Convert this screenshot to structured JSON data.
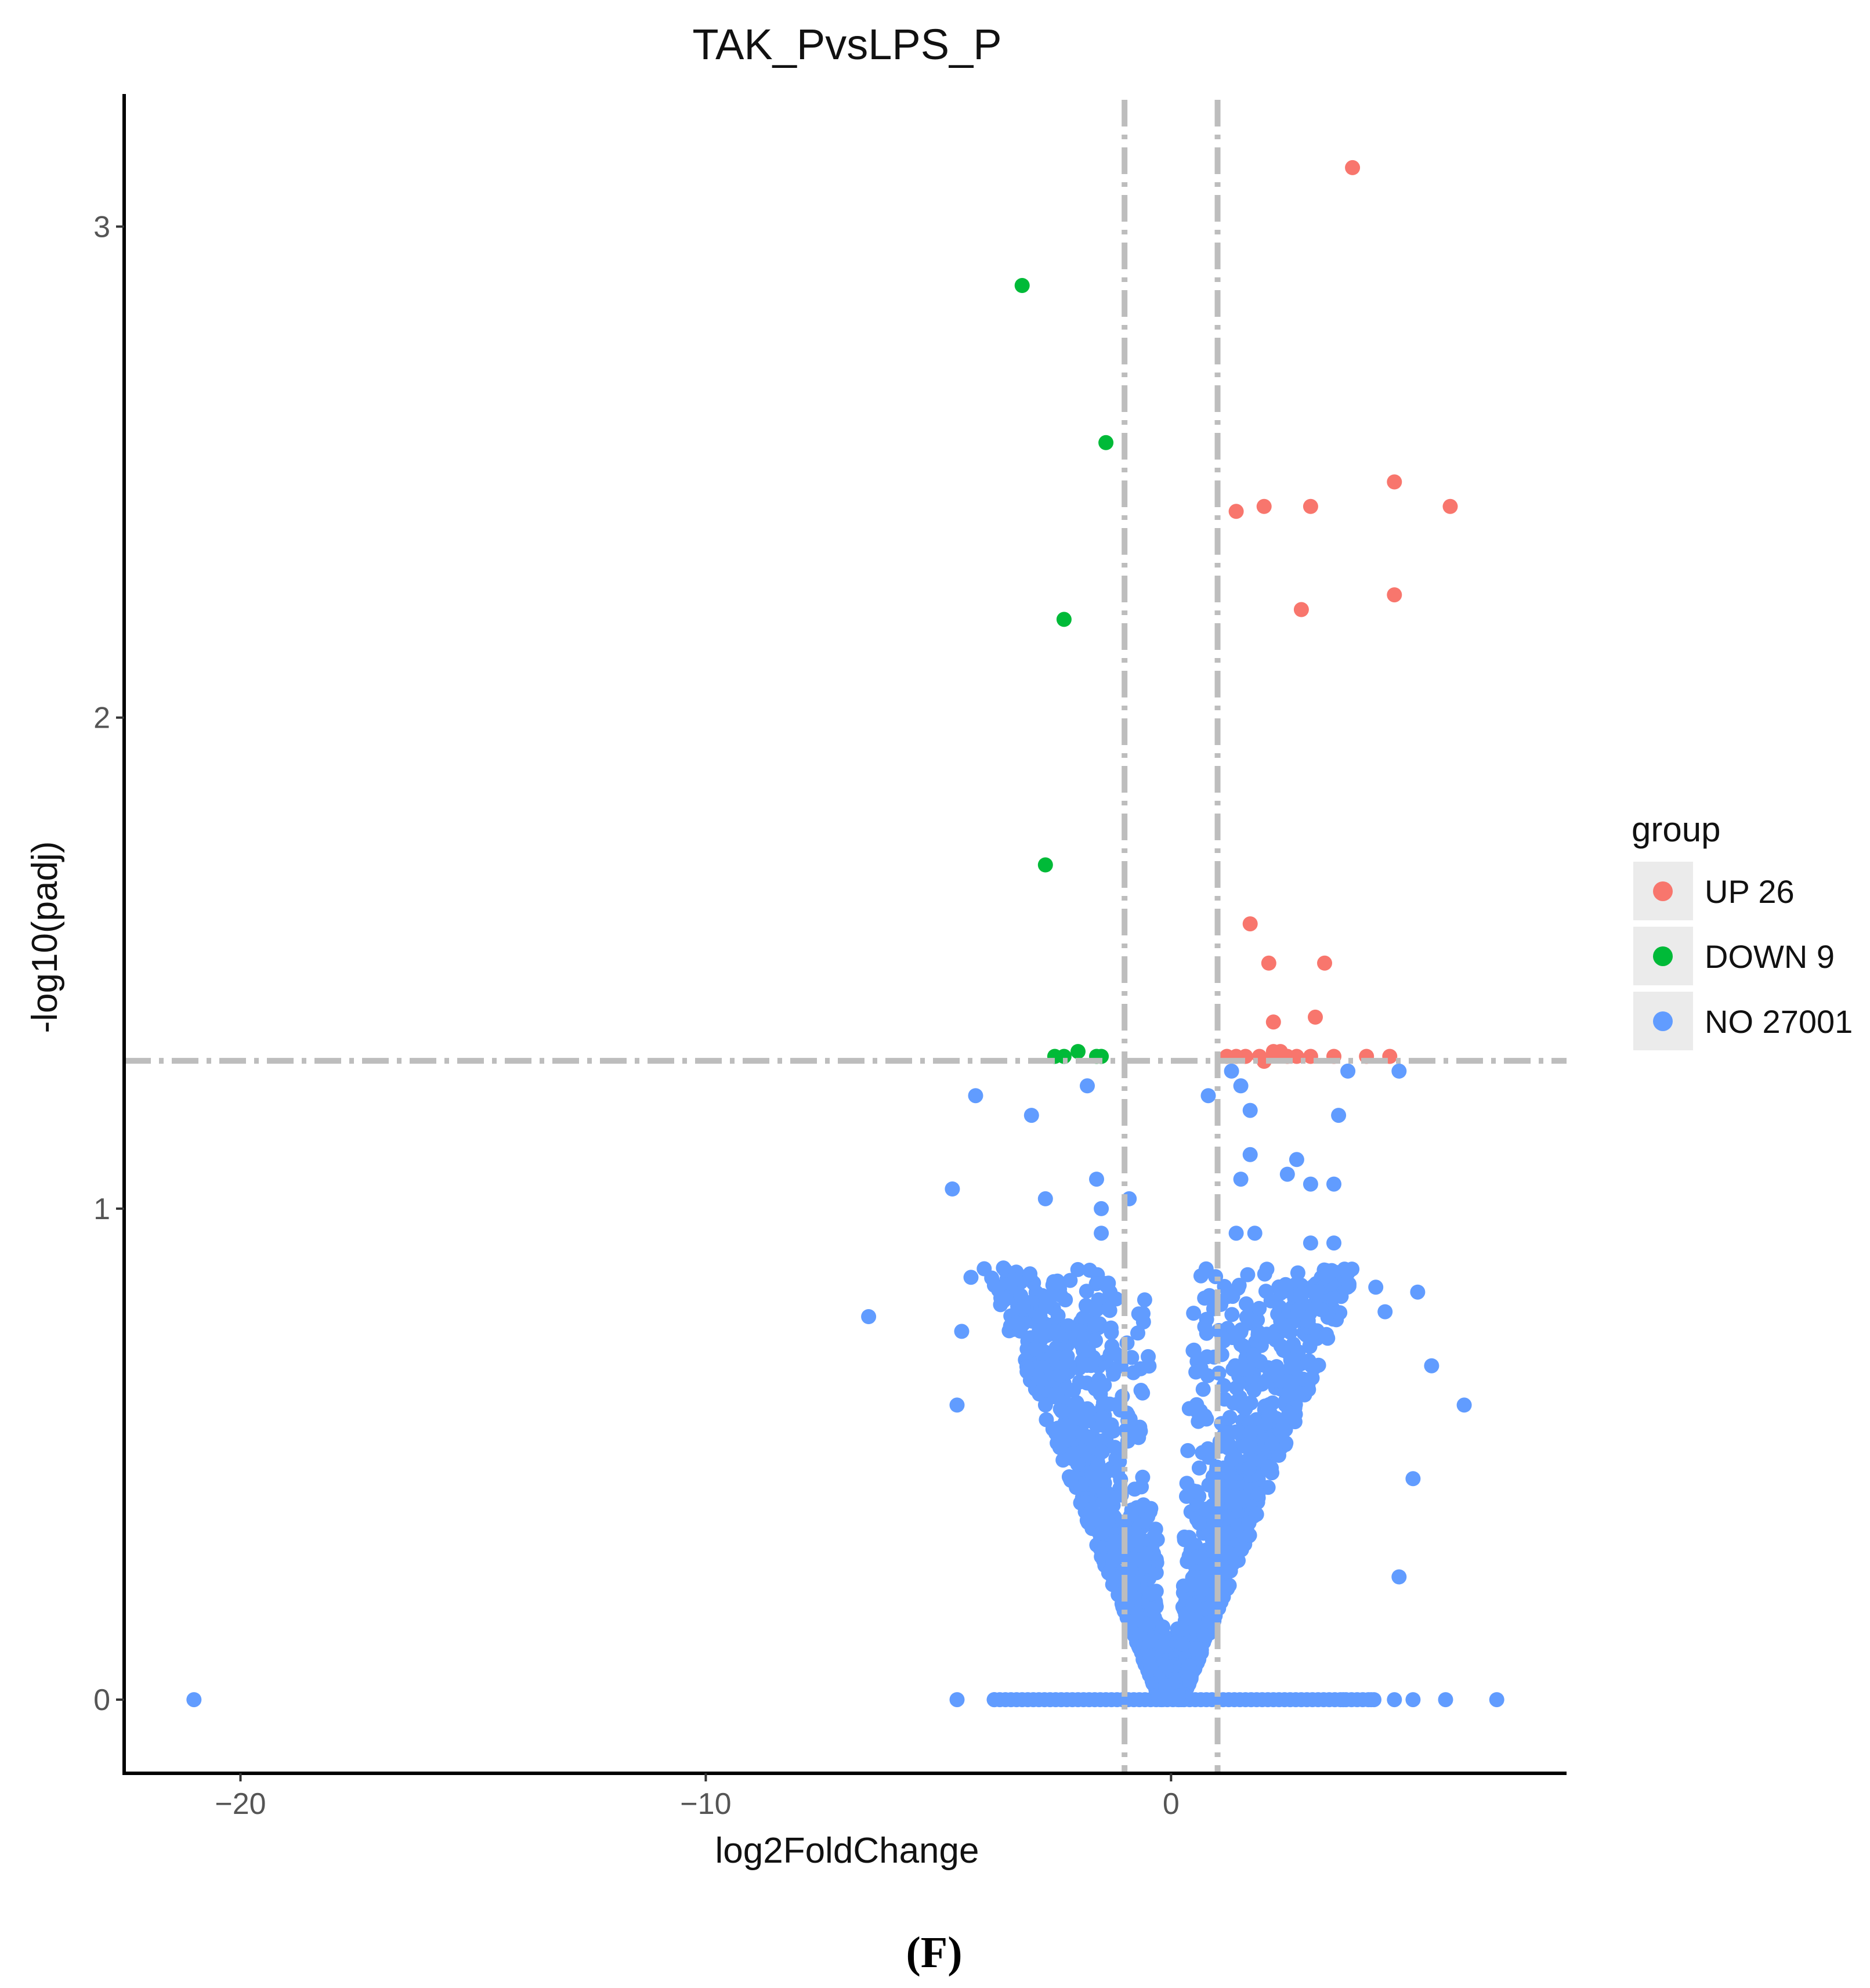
{
  "chart_data": {
    "type": "scatter",
    "title": "TAK_PvsLPS_P",
    "xlabel": "log2FoldChange",
    "ylabel": "-log10(padj)",
    "xlim": [
      -22.5,
      8.5
    ],
    "ylim": [
      -0.15,
      3.27
    ],
    "x_ticks": [
      -20,
      -10,
      0
    ],
    "x_tick_labels": [
      "−20",
      "−10",
      "0"
    ],
    "y_ticks": [
      0,
      1,
      2,
      3
    ],
    "y_tick_labels": [
      "0",
      "1",
      "2",
      "3"
    ],
    "thresholds": {
      "vlines": [
        -1,
        1
      ],
      "hline": 1.301
    },
    "legend": {
      "title": "group",
      "position": "right",
      "entries": [
        {
          "label": "UP 26",
          "color": "#F8766D"
        },
        {
          "label": "DOWN 9",
          "color": "#00BA38"
        },
        {
          "label": "NO 27001",
          "color": "#619CFF"
        }
      ]
    },
    "series": [
      {
        "name": "UP",
        "color": "#F8766D",
        "points": [
          [
            3.9,
            3.12
          ],
          [
            4.8,
            2.48
          ],
          [
            6.0,
            2.43
          ],
          [
            3.0,
            2.43
          ],
          [
            2.0,
            2.43
          ],
          [
            1.4,
            2.42
          ],
          [
            4.8,
            2.25
          ],
          [
            2.8,
            2.22
          ],
          [
            1.7,
            1.58
          ],
          [
            2.1,
            1.5
          ],
          [
            3.3,
            1.5
          ],
          [
            3.1,
            1.39
          ],
          [
            2.2,
            1.38
          ],
          [
            1.2,
            1.31
          ],
          [
            1.4,
            1.31
          ],
          [
            1.9,
            1.31
          ],
          [
            2.2,
            1.32
          ],
          [
            2.5,
            1.31
          ],
          [
            3.0,
            1.31
          ],
          [
            4.2,
            1.31
          ],
          [
            4.7,
            1.31
          ],
          [
            2.7,
            1.31
          ],
          [
            2.0,
            1.3
          ],
          [
            1.6,
            1.31
          ],
          [
            2.35,
            1.32
          ],
          [
            3.5,
            1.31
          ]
        ]
      },
      {
        "name": "DOWN",
        "color": "#00BA38",
        "points": [
          [
            -3.2,
            2.88
          ],
          [
            -1.4,
            2.56
          ],
          [
            -2.3,
            2.2
          ],
          [
            -2.7,
            1.7
          ],
          [
            -2.5,
            1.31
          ],
          [
            -2.0,
            1.32
          ],
          [
            -1.5,
            1.31
          ],
          [
            -1.6,
            1.31
          ],
          [
            -2.3,
            1.31
          ]
        ]
      },
      {
        "name": "NO",
        "color": "#619CFF",
        "total": 27001,
        "outliers": [
          [
            -21.0,
            0.0
          ],
          [
            -6.5,
            0.78
          ],
          [
            -4.7,
            1.04
          ],
          [
            -4.2,
            1.23
          ],
          [
            -3.0,
            1.19
          ],
          [
            -2.7,
            1.02
          ],
          [
            -1.8,
            1.25
          ],
          [
            -1.6,
            1.06
          ],
          [
            -1.5,
            1.0
          ],
          [
            -0.9,
            1.02
          ],
          [
            0.8,
            1.23
          ],
          [
            1.5,
            1.25
          ],
          [
            1.7,
            1.2
          ],
          [
            1.7,
            1.11
          ],
          [
            1.5,
            1.06
          ],
          [
            2.5,
            1.07
          ],
          [
            2.7,
            1.1
          ],
          [
            3.0,
            1.05
          ],
          [
            3.5,
            1.05
          ],
          [
            3.6,
            1.19
          ],
          [
            3.8,
            1.28
          ],
          [
            4.9,
            1.28
          ],
          [
            1.3,
            1.28
          ],
          [
            5.6,
            0.68
          ],
          [
            6.3,
            0.6
          ],
          [
            5.2,
            0.45
          ],
          [
            4.9,
            0.25
          ],
          [
            5.3,
            0.83
          ],
          [
            4.6,
            0.79
          ],
          [
            -4.5,
            0.75
          ],
          [
            -4.6,
            0.6
          ],
          [
            -4.3,
            0.86
          ],
          [
            7.0,
            0.0
          ],
          [
            -4.6,
            0.0
          ],
          [
            5.9,
            0.0
          ],
          [
            5.2,
            0.0
          ],
          [
            4.8,
            0.0
          ],
          [
            4.3,
            0.0
          ],
          [
            3.7,
            0.0
          ],
          [
            -3.8,
            0.0
          ],
          [
            1.4,
            0.95
          ],
          [
            1.8,
            0.95
          ],
          [
            -1.5,
            0.95
          ],
          [
            3.0,
            0.93
          ],
          [
            3.5,
            0.93
          ],
          [
            4.4,
            0.84
          ]
        ]
      }
    ]
  }
}
